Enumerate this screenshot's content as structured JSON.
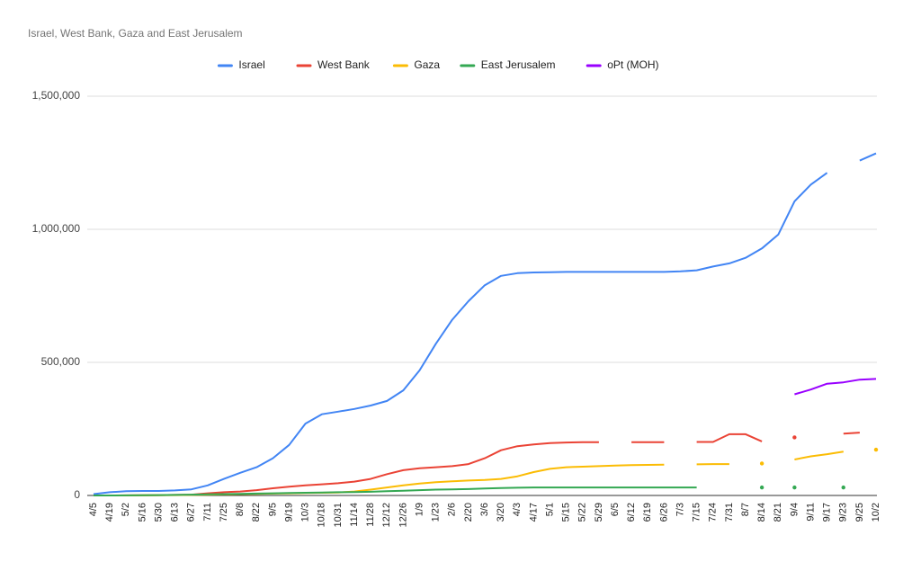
{
  "chart_data": {
    "type": "line",
    "title": "Israel, West Bank, Gaza and East Jerusalem",
    "categories": [
      "4/5",
      "4/19",
      "5/2",
      "5/16",
      "5/30",
      "6/13",
      "6/27",
      "7/11",
      "7/25",
      "8/8",
      "8/22",
      "9/5",
      "9/19",
      "10/3",
      "10/18",
      "10/31",
      "11/14",
      "11/28",
      "12/12",
      "12/26",
      "1/9",
      "1/23",
      "2/6",
      "2/20",
      "3/6",
      "3/20",
      "4/3",
      "4/17",
      "5/1",
      "5/15",
      "5/22",
      "5/29",
      "6/5",
      "6/12",
      "6/19",
      "6/26",
      "7/3",
      "7/15",
      "7/24",
      "7/31",
      "8/7",
      "8/14",
      "8/21",
      "9/4",
      "9/11",
      "9/17",
      "9/23",
      "9/25",
      "10/2"
    ],
    "series": [
      {
        "name": "Israel",
        "color": "#4285f4",
        "values": [
          5000,
          12000,
          16000,
          17000,
          17000,
          19000,
          23000,
          38000,
          62000,
          85000,
          106000,
          140000,
          190000,
          270000,
          305000,
          315000,
          325000,
          338000,
          355000,
          395000,
          470000,
          570000,
          660000,
          730000,
          790000,
          825000,
          835000,
          838000,
          839000,
          840000,
          840000,
          840000,
          840000,
          840000,
          840000,
          840000,
          842000,
          846000,
          860000,
          872000,
          893000,
          928000,
          980000,
          1105000,
          1168000,
          1212000,
          null,
          1258000,
          1285000
        ]
      },
      {
        "name": "West Bank",
        "color": "#ea4335",
        "values": [
          0,
          0,
          500,
          1000,
          1500,
          2000,
          3000,
          8000,
          12000,
          15000,
          20000,
          27000,
          33000,
          38000,
          42000,
          46000,
          52000,
          62000,
          80000,
          95000,
          102000,
          106000,
          110000,
          118000,
          140000,
          170000,
          185000,
          192000,
          197000,
          199000,
          200000,
          200000,
          null,
          200000,
          200000,
          200000,
          null,
          201000,
          201000,
          230000,
          230000,
          203000,
          null,
          218000,
          null,
          null,
          232000,
          236000,
          null
        ]
      },
      {
        "name": "Gaza",
        "color": "#fbbc04",
        "values": [
          0,
          0,
          0,
          500,
          1000,
          1500,
          2000,
          3000,
          4000,
          5000,
          6000,
          7000,
          8000,
          9000,
          10000,
          11000,
          15000,
          22000,
          30000,
          38000,
          45000,
          50000,
          53000,
          56000,
          58000,
          62000,
          72000,
          88000,
          100000,
          106000,
          108000,
          110000,
          112000,
          114000,
          115000,
          116000,
          null,
          117000,
          118000,
          118000,
          null,
          120000,
          null,
          135000,
          147000,
          155000,
          165000,
          null,
          172000
        ]
      },
      {
        "name": "East Jerusalem",
        "color": "#34a853",
        "values": [
          0,
          0,
          500,
          1000,
          1500,
          2000,
          3000,
          4000,
          5000,
          6000,
          7000,
          8000,
          9000,
          10000,
          11000,
          12000,
          13000,
          14000,
          16000,
          18000,
          20000,
          22000,
          23000,
          24000,
          26000,
          28000,
          29000,
          30000,
          30000,
          30000,
          30000,
          30000,
          30000,
          30000,
          30000,
          30000,
          30000,
          30000,
          null,
          null,
          null,
          30000,
          null,
          30000,
          null,
          null,
          30000,
          null,
          null
        ]
      },
      {
        "name": "oPt (MOH)",
        "color": "#9900ff",
        "values": [
          null,
          null,
          null,
          null,
          null,
          null,
          null,
          null,
          null,
          null,
          null,
          null,
          null,
          null,
          null,
          null,
          null,
          null,
          null,
          null,
          null,
          null,
          null,
          null,
          null,
          null,
          null,
          null,
          null,
          null,
          null,
          null,
          null,
          null,
          null,
          null,
          null,
          null,
          null,
          null,
          null,
          null,
          null,
          380000,
          398000,
          420000,
          425000,
          435000,
          438000
        ]
      }
    ],
    "ylim": [
      0,
      1500000
    ],
    "yticks": [
      0,
      {
        "value": 500000,
        "label": "500,000"
      },
      {
        "value": 1000000,
        "label": "1,000,000"
      },
      {
        "value": 1500000,
        "label": "1,500,000"
      }
    ],
    "grid": true
  }
}
